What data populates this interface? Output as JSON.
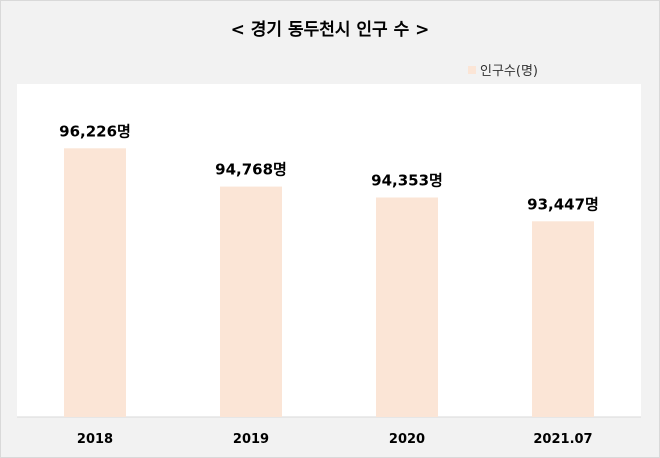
{
  "title": "< 경기 동두천시 인구 수 >",
  "legend": {
    "label": "인구수(명)"
  },
  "colors": {
    "bar": "#fbe5d6",
    "plot_bg": "#ffffff",
    "background": "#f2f2f2"
  },
  "chart_data": {
    "type": "bar",
    "title": "< 경기 동두천시 인구 수 >",
    "categories": [
      "2018",
      "2019",
      "2020",
      "2021.07"
    ],
    "series": [
      {
        "name": "인구수(명)",
        "values": [
          96226,
          94768,
          94353,
          93447
        ]
      }
    ],
    "data_labels": [
      "96,226명",
      "94,768명",
      "94,353명",
      "93,447명"
    ],
    "xlabel": "",
    "ylabel": "",
    "ylim": [
      86000,
      97000
    ],
    "grid": false,
    "legend_position": "top-right"
  }
}
